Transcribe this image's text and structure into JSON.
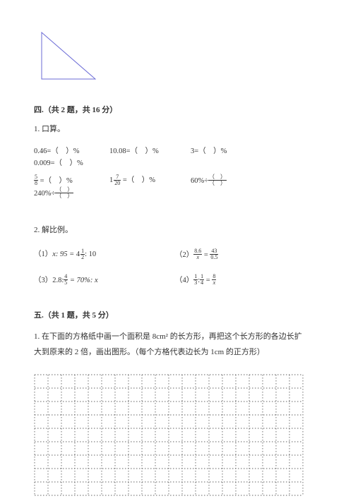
{
  "triangle": {
    "width": 78,
    "height": 68,
    "stroke": "#6b6bd6",
    "stroke_width": 1
  },
  "section4": {
    "title": "四.（共 2 题，共 16 分）",
    "q1": {
      "label": "1. 口算。",
      "row1": [
        "0.46=（　）%",
        "10.08=（　）%",
        "3=（　）%",
        "0.009=（　）%"
      ],
      "row2": {
        "c1": {
          "frac_num": "5",
          "frac_den": "8",
          "tail": " =（　）%"
        },
        "c2": {
          "int": "1",
          "frac_num": "7",
          "frac_den": "20",
          "tail": " =（　）%"
        },
        "c3": {
          "lead": "60%÷",
          "pf_num": "（　）",
          "pf_den": "（　）"
        },
        "c4": {
          "lead": "240%÷",
          "pf_num": "（　）",
          "pf_den": "（　）"
        }
      }
    },
    "q2": {
      "label": "2. 解比例。",
      "items": [
        {
          "lead": "（1）",
          "body_type": "text",
          "text_a": "x: 95 = ",
          "mix_int": "4",
          "mix_num": "1",
          "mix_den": "2",
          "text_b": ": 10"
        },
        {
          "lead": "（2）",
          "body_type": "fraceq",
          "ln": "8.6",
          "ld": "x",
          "rn": "43",
          "rd": "0.5"
        },
        {
          "lead": "（3）",
          "body_type": "text2",
          "text_a": "2.8:",
          "f_num": "4",
          "f_den": "5",
          "text_b": " = 70%: x"
        },
        {
          "lead": "（4）",
          "body_type": "fraceq2",
          "an": "1",
          "ad": "3",
          "bn": "1",
          "bd": "4",
          "cn": "8",
          "cd": "x"
        }
      ]
    }
  },
  "section5": {
    "title": "五.（共 1 题，共 5 分）",
    "q1_line1": "1. 在下面的方格纸中画一个面积是 8cm² 的长方形，再把这个长方形的各边长扩",
    "q1_line2": "大到原来的 2 倍，画出图形。（每个方格代表边长为 1cm 的正方形）"
  },
  "grid": {
    "cols": 20,
    "rows": 9,
    "cell": 19,
    "stroke": "#333333",
    "dash": "1.5,2.5"
  }
}
